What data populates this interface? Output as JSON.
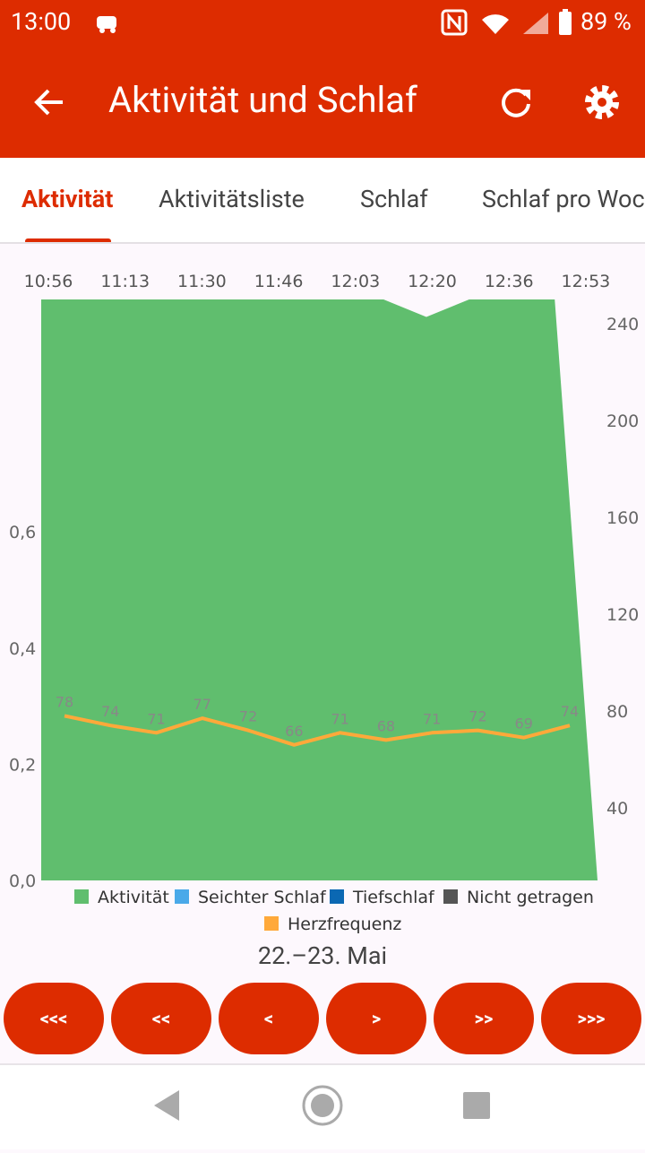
{
  "status_bar": {
    "time": "13:00",
    "battery": "89 %"
  },
  "app_bar": {
    "title": "Aktivität und Schlaf"
  },
  "tabs": [
    "Aktivität",
    "Aktivitätsliste",
    "Schlaf",
    "Schlaf pro Woche"
  ],
  "chart_data": {
    "type": "area",
    "x_labels": [
      "10:56",
      "11:13",
      "11:30",
      "11:46",
      "12:03",
      "12:20",
      "12:36",
      "12:53"
    ],
    "ylim": [
      0,
      1
    ],
    "yticks": [
      {
        "value": 0,
        "label": "0,0"
      },
      {
        "value": 0.2,
        "label": "0,2"
      },
      {
        "value": 0.4,
        "label": "0,4"
      },
      {
        "value": 0.6,
        "label": "0,6"
      }
    ],
    "y2lim": [
      10,
      250
    ],
    "y2ticks": [
      40,
      80,
      120,
      160,
      200,
      240
    ],
    "series": [
      {
        "name": "Aktivität",
        "color": "#60be6e",
        "values": [
          1,
          1,
          1,
          1,
          1,
          1,
          1,
          1,
          1,
          0.97,
          1,
          1,
          1,
          0
        ]
      },
      {
        "name": "Seichter Schlaf",
        "color": "#4aa9e9",
        "values": []
      },
      {
        "name": "Tiefschlaf",
        "color": "#0b68b3",
        "values": []
      },
      {
        "name": "Nicht getragen",
        "color": "#555555",
        "values": []
      },
      {
        "name": "Herzfrequenz",
        "color": "#ffa93a",
        "axis": "y2",
        "values": [
          78,
          74,
          71,
          77,
          72,
          66,
          71,
          68,
          71,
          72,
          69,
          74
        ]
      }
    ]
  },
  "date_label": "22.–23. Mai",
  "nav_buttons": [
    "<<<",
    "<<",
    "<",
    ">",
    ">>",
    ">>>"
  ]
}
